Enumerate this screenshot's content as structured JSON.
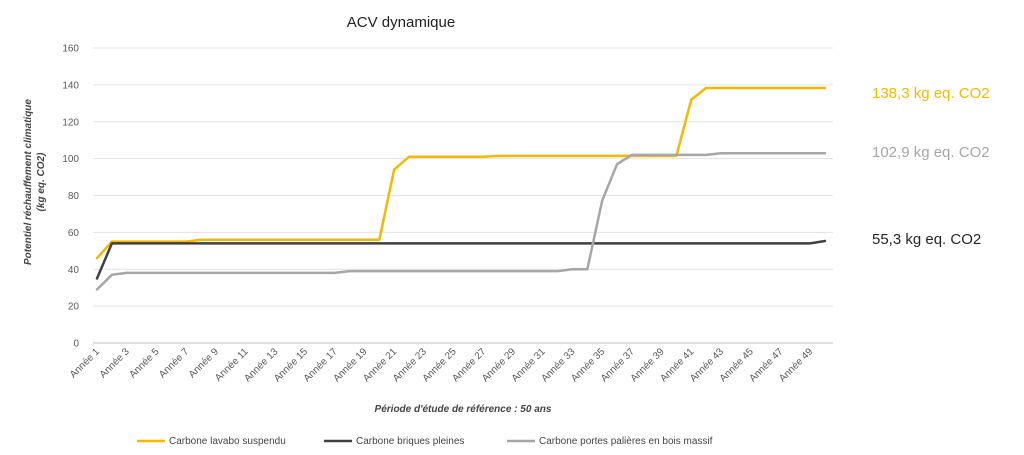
{
  "chart_data": {
    "type": "line",
    "title": "ACV dynamique",
    "xlabel": "Période d'étude de référence : 50 ans",
    "ylabel_line1": "Potentiel réchauffement climatique",
    "ylabel_line2": "(kg eq. CO2)",
    "ylim": [
      0,
      160
    ],
    "yticks": [
      0,
      20,
      40,
      60,
      80,
      100,
      120,
      140,
      160
    ],
    "grid": true,
    "legend_position": "bottom",
    "x": [
      "Année 1",
      "Année 2",
      "Année 3",
      "Année 4",
      "Année 5",
      "Année 6",
      "Année 7",
      "Année 8",
      "Année 9",
      "Année 10",
      "Année 11",
      "Année 12",
      "Année 13",
      "Année 14",
      "Année 15",
      "Année 16",
      "Année 17",
      "Année 18",
      "Année 19",
      "Année 20",
      "Année 21",
      "Année 22",
      "Année 23",
      "Année 24",
      "Année 25",
      "Année 26",
      "Année 27",
      "Année 28",
      "Année 29",
      "Année 30",
      "Année 31",
      "Année 32",
      "Année 33",
      "Année 34",
      "Année 35",
      "Année 36",
      "Année 37",
      "Année 38",
      "Année 39",
      "Année 40",
      "Année 41",
      "Année 42",
      "Année 43",
      "Année 44",
      "Année 45",
      "Année 46",
      "Année 47",
      "Année 48",
      "Année 49",
      "Année 50"
    ],
    "xtick_labels": [
      "Année 1",
      "Année 3",
      "Année 5",
      "Année 7",
      "Année 9",
      "Année 11",
      "Année 13",
      "Année 15",
      "Année 17",
      "Année 19",
      "Année 21",
      "Année 23",
      "Année 25",
      "Année 27",
      "Année 29",
      "Année 31",
      "Année 33",
      "Année 35",
      "Année 37",
      "Année 39",
      "Année 41",
      "Année 43",
      "Année 45",
      "Année 47",
      "Année 49"
    ],
    "series": [
      {
        "name": "Carbone lavabo suspendu",
        "color": "#F5B800",
        "values": [
          46,
          55,
          55,
          55,
          55,
          55,
          55,
          56,
          56,
          56,
          56,
          56,
          56,
          56,
          56,
          56,
          56,
          56,
          56,
          56,
          94,
          101,
          101,
          101,
          101,
          101,
          101,
          101.5,
          101.5,
          101.5,
          101.5,
          101.5,
          101.5,
          101.5,
          101.5,
          101.5,
          101.5,
          101.5,
          101.5,
          101.5,
          132,
          138.3,
          138.3,
          138.3,
          138.3,
          138.3,
          138.3,
          138.3,
          138.3,
          138.3
        ]
      },
      {
        "name": "Carbone briques pleines",
        "color": "#404040",
        "values": [
          35,
          54,
          54,
          54,
          54,
          54,
          54,
          54,
          54,
          54,
          54,
          54,
          54,
          54,
          54,
          54,
          54,
          54,
          54,
          54,
          54,
          54,
          54,
          54,
          54,
          54,
          54,
          54,
          54,
          54,
          54,
          54,
          54,
          54,
          54,
          54,
          54,
          54,
          54,
          54,
          54,
          54,
          54,
          54,
          54,
          54,
          54,
          54,
          54,
          55.3
        ]
      },
      {
        "name": "Carbone portes palières en bois massif",
        "color": "#A6A6A6",
        "values": [
          29,
          37,
          38,
          38,
          38,
          38,
          38,
          38,
          38,
          38,
          38,
          38,
          38,
          38,
          38,
          38,
          38,
          39,
          39,
          39,
          39,
          39,
          39,
          39,
          39,
          39,
          39,
          39,
          39,
          39,
          39,
          39,
          40,
          40,
          77,
          97,
          102,
          102,
          102,
          102,
          102,
          102,
          102.9,
          102.9,
          102.9,
          102.9,
          102.9,
          102.9,
          102.9,
          102.9
        ]
      }
    ],
    "annotations": [
      {
        "text": "138,3 kg eq. CO2",
        "color": "#F5B800"
      },
      {
        "text": "102,9 kg eq. CO2",
        "color": "#A6A6A6"
      },
      {
        "text": "55,3 kg eq. CO2",
        "color": "#262626"
      }
    ]
  }
}
